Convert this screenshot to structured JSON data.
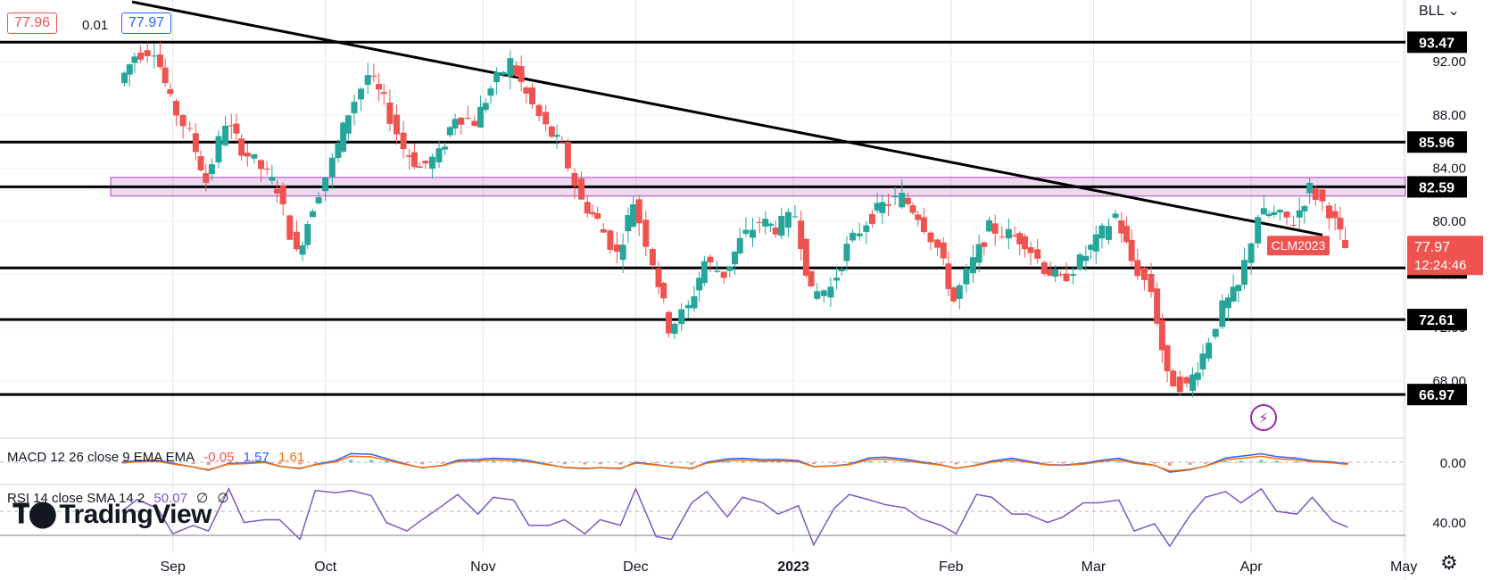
{
  "header": {
    "bid": "77.96",
    "spread": "0.01",
    "ask": "77.97",
    "currency": "BLL"
  },
  "levels": [
    {
      "value": 93.47,
      "label": "93.47"
    },
    {
      "value": 85.96,
      "label": "85.96"
    },
    {
      "value": 82.59,
      "label": "82.59"
    },
    {
      "value": 76.49,
      "label": "76.49"
    },
    {
      "value": 72.61,
      "label": "72.61"
    },
    {
      "value": 66.97,
      "label": "66.97"
    }
  ],
  "current_price": {
    "symbol": "CLM2023",
    "price": "77.97",
    "countdown": "12:24:46"
  },
  "macd": {
    "label": "MACD 12 26 close 9 EMA EMA",
    "hist": "-0.05",
    "macd": "1.57",
    "signal": "1.61",
    "axis_label": "0.00"
  },
  "rsi": {
    "label": "RSI 14 close SMA 14 2",
    "value": "50.07",
    "extra1": "∅",
    "extra2": "∅",
    "axis_label": "40.00"
  },
  "logo": {
    "text": "TradingView"
  },
  "colors": {
    "up": "#26a69a",
    "down": "#ef5350",
    "zone": "#ce93d8",
    "rsi": "#7e57c2",
    "macd": "#2962ff",
    "signal": "#ff6d00"
  },
  "chart_data": {
    "type": "candlestick",
    "y_axis": {
      "ticks": [
        92.0,
        88.0,
        84.0,
        80.0,
        76.0,
        72.0,
        68.0
      ],
      "tick_labels": [
        "92.00",
        "88.00",
        "84.00",
        "80.00",
        "76.00",
        "72.00",
        "68.00"
      ]
    },
    "x_axis": {
      "tick_labels": [
        "Sep",
        "Oct",
        "Nov",
        "Dec",
        "2023",
        "Feb",
        "Mar",
        "Apr",
        "May"
      ]
    },
    "resistance_zone": {
      "low": 81.9,
      "high": 83.3
    },
    "trendline": {
      "from": {
        "date": "2022-08-24",
        "price": 96.5
      },
      "to": {
        "date": "2023-04-20",
        "price": 78.6
      }
    },
    "closes": [
      {
        "date": "2022-08-22",
        "close": 90.4
      },
      {
        "date": "2022-08-25",
        "close": 92.5
      },
      {
        "date": "2022-08-29",
        "close": 93.0
      },
      {
        "date": "2022-09-01",
        "close": 89.0
      },
      {
        "date": "2022-09-05",
        "close": 86.5
      },
      {
        "date": "2022-09-08",
        "close": 83.0
      },
      {
        "date": "2022-09-12",
        "close": 87.5
      },
      {
        "date": "2022-09-15",
        "close": 85.5
      },
      {
        "date": "2022-09-19",
        "close": 84.0
      },
      {
        "date": "2022-09-22",
        "close": 82.5
      },
      {
        "date": "2022-09-26",
        "close": 77.5
      },
      {
        "date": "2022-09-29",
        "close": 81.2
      },
      {
        "date": "2022-10-03",
        "close": 84.5
      },
      {
        "date": "2022-10-06",
        "close": 88.2
      },
      {
        "date": "2022-10-10",
        "close": 91.0
      },
      {
        "date": "2022-10-13",
        "close": 89.0
      },
      {
        "date": "2022-10-17",
        "close": 85.5
      },
      {
        "date": "2022-10-20",
        "close": 84.0
      },
      {
        "date": "2022-10-24",
        "close": 85.0
      },
      {
        "date": "2022-10-27",
        "close": 88.0
      },
      {
        "date": "2022-10-31",
        "close": 87.5
      },
      {
        "date": "2022-11-03",
        "close": 90.0
      },
      {
        "date": "2022-11-07",
        "close": 92.0
      },
      {
        "date": "2022-11-10",
        "close": 89.5
      },
      {
        "date": "2022-11-14",
        "close": 87.0
      },
      {
        "date": "2022-11-17",
        "close": 85.5
      },
      {
        "date": "2022-11-21",
        "close": 81.5
      },
      {
        "date": "2022-11-24",
        "close": 80.0
      },
      {
        "date": "2022-11-28",
        "close": 77.5
      },
      {
        "date": "2022-12-01",
        "close": 81.5
      },
      {
        "date": "2022-12-05",
        "close": 77.0
      },
      {
        "date": "2022-12-08",
        "close": 72.0
      },
      {
        "date": "2022-12-12",
        "close": 73.5
      },
      {
        "date": "2022-12-15",
        "close": 77.0
      },
      {
        "date": "2022-12-19",
        "close": 76.0
      },
      {
        "date": "2022-12-22",
        "close": 78.5
      },
      {
        "date": "2022-12-26",
        "close": 80.0
      },
      {
        "date": "2022-12-29",
        "close": 79.5
      },
      {
        "date": "2023-01-02",
        "close": 80.5
      },
      {
        "date": "2023-01-05",
        "close": 74.5
      },
      {
        "date": "2023-01-09",
        "close": 75.0
      },
      {
        "date": "2023-01-12",
        "close": 78.0
      },
      {
        "date": "2023-01-16",
        "close": 80.0
      },
      {
        "date": "2023-01-19",
        "close": 81.2
      },
      {
        "date": "2023-01-23",
        "close": 81.8
      },
      {
        "date": "2023-01-26",
        "close": 80.5
      },
      {
        "date": "2023-01-30",
        "close": 78.0
      },
      {
        "date": "2023-02-02",
        "close": 74.0
      },
      {
        "date": "2023-02-06",
        "close": 77.0
      },
      {
        "date": "2023-02-09",
        "close": 79.5
      },
      {
        "date": "2023-02-13",
        "close": 79.0
      },
      {
        "date": "2023-02-16",
        "close": 78.5
      },
      {
        "date": "2023-02-20",
        "close": 76.5
      },
      {
        "date": "2023-02-23",
        "close": 75.5
      },
      {
        "date": "2023-02-27",
        "close": 77.0
      },
      {
        "date": "2023-03-02",
        "close": 78.5
      },
      {
        "date": "2023-03-06",
        "close": 80.5
      },
      {
        "date": "2023-03-09",
        "close": 77.0
      },
      {
        "date": "2023-03-13",
        "close": 74.8
      },
      {
        "date": "2023-03-16",
        "close": 68.2
      },
      {
        "date": "2023-03-20",
        "close": 67.5
      },
      {
        "date": "2023-03-23",
        "close": 70.0
      },
      {
        "date": "2023-03-27",
        "close": 73.5
      },
      {
        "date": "2023-03-30",
        "close": 75.0
      },
      {
        "date": "2023-04-03",
        "close": 80.5
      },
      {
        "date": "2023-04-06",
        "close": 80.5
      },
      {
        "date": "2023-04-10",
        "close": 80.0
      },
      {
        "date": "2023-04-13",
        "close": 82.5
      },
      {
        "date": "2023-04-17",
        "close": 80.8
      },
      {
        "date": "2023-04-20",
        "close": 77.97
      }
    ]
  }
}
